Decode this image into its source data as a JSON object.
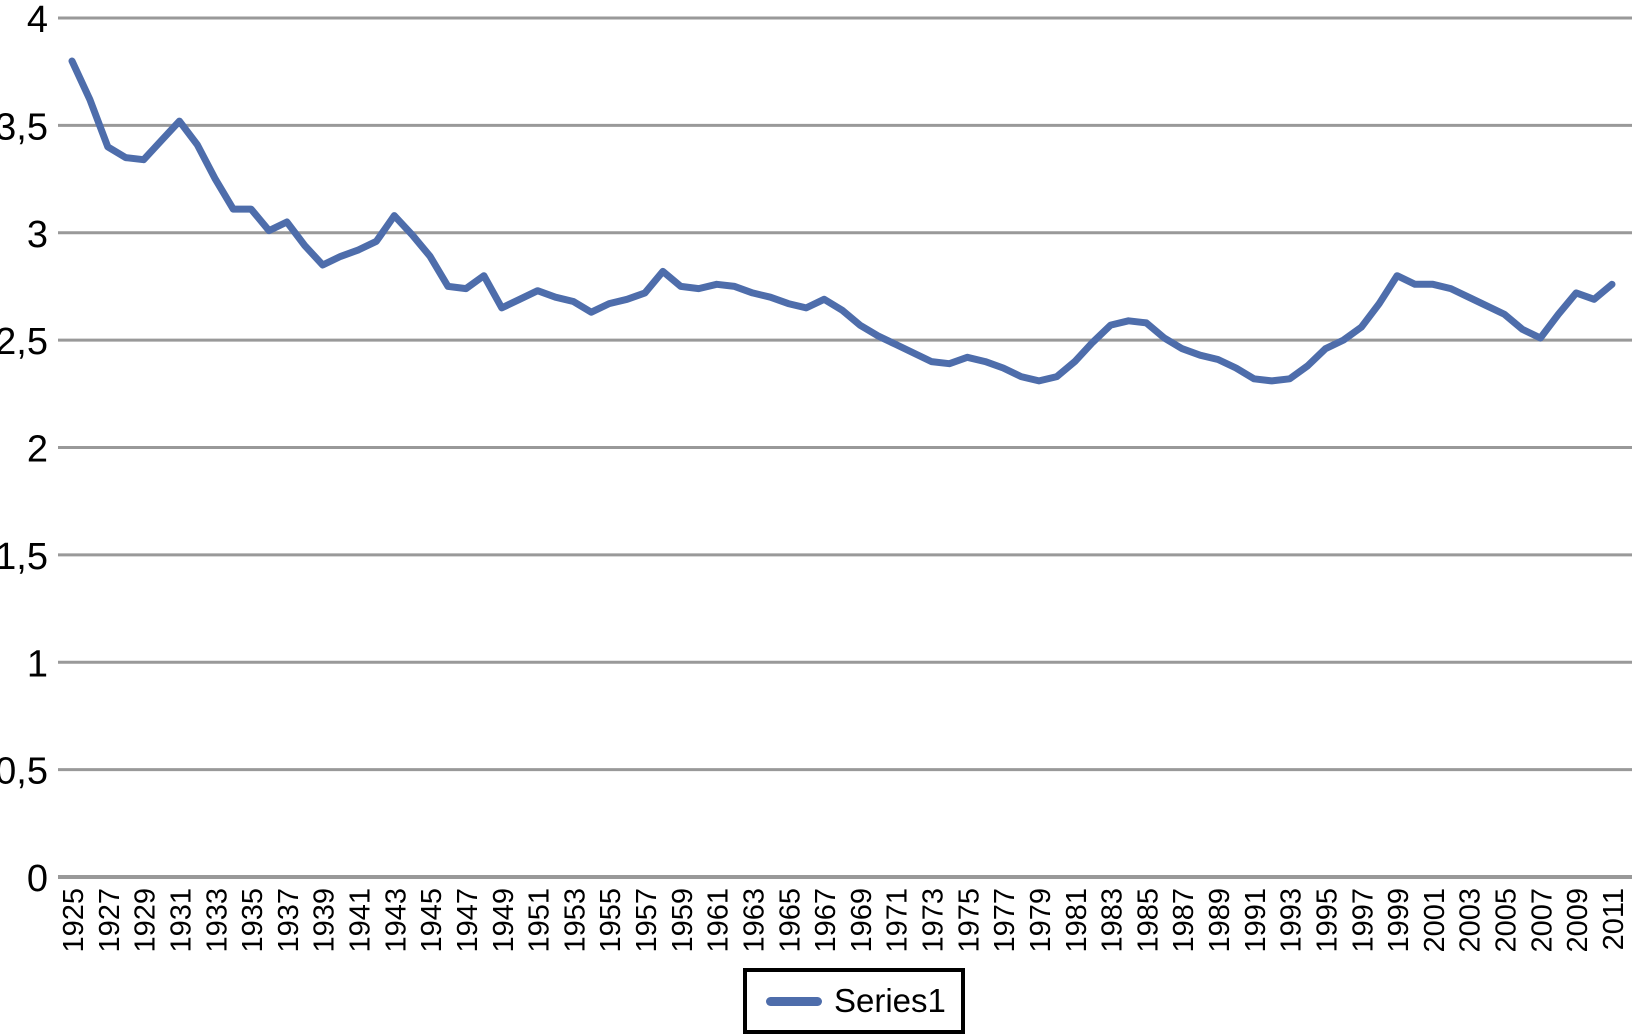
{
  "chart_data": {
    "type": "line",
    "title": "",
    "xlabel": "",
    "ylabel": "",
    "ylim": [
      0,
      4
    ],
    "grid": "horizontal",
    "grid_color": "#999999",
    "axis_color": "#999999",
    "text_color": "#000000",
    "background_color": "#ffffff",
    "legend_position": "bottom-center",
    "decimal_separator": ",",
    "y_ticks": [
      "4",
      "3,5",
      "3",
      "2,5",
      "2",
      "1,5",
      "1",
      "0,5",
      "0"
    ],
    "x_label_every": 2,
    "categories": [
      1925,
      1926,
      1927,
      1928,
      1929,
      1930,
      1931,
      1932,
      1933,
      1934,
      1935,
      1936,
      1937,
      1938,
      1939,
      1940,
      1941,
      1942,
      1943,
      1944,
      1945,
      1946,
      1947,
      1948,
      1949,
      1950,
      1951,
      1952,
      1953,
      1954,
      1955,
      1956,
      1957,
      1958,
      1959,
      1960,
      1961,
      1962,
      1963,
      1964,
      1965,
      1966,
      1967,
      1968,
      1969,
      1970,
      1971,
      1972,
      1973,
      1974,
      1975,
      1976,
      1977,
      1978,
      1979,
      1980,
      1981,
      1982,
      1983,
      1984,
      1985,
      1986,
      1987,
      1988,
      1989,
      1990,
      1991,
      1992,
      1993,
      1994,
      1995,
      1996,
      1997,
      1998,
      1999,
      2000,
      2001,
      2002,
      2003,
      2004,
      2005,
      2006,
      2007,
      2008,
      2009,
      2010,
      2011
    ],
    "series": [
      {
        "name": "Series1",
        "color": "#4e6dab",
        "values": [
          3.8,
          3.62,
          3.4,
          3.35,
          3.34,
          3.43,
          3.52,
          3.41,
          3.25,
          3.11,
          3.11,
          3.01,
          3.05,
          2.94,
          2.85,
          2.89,
          2.92,
          2.96,
          3.08,
          2.99,
          2.89,
          2.75,
          2.74,
          2.8,
          2.65,
          2.69,
          2.73,
          2.7,
          2.68,
          2.63,
          2.67,
          2.69,
          2.72,
          2.82,
          2.75,
          2.74,
          2.76,
          2.75,
          2.72,
          2.7,
          2.67,
          2.65,
          2.69,
          2.64,
          2.57,
          2.52,
          2.48,
          2.44,
          2.4,
          2.39,
          2.42,
          2.4,
          2.37,
          2.33,
          2.31,
          2.33,
          2.4,
          2.49,
          2.57,
          2.59,
          2.58,
          2.51,
          2.46,
          2.43,
          2.41,
          2.37,
          2.32,
          2.31,
          2.32,
          2.38,
          2.46,
          2.5,
          2.56,
          2.67,
          2.8,
          2.76,
          2.76,
          2.74,
          2.7,
          2.66,
          2.62,
          2.55,
          2.51,
          2.62,
          2.72,
          2.69,
          2.76
        ]
      }
    ]
  }
}
